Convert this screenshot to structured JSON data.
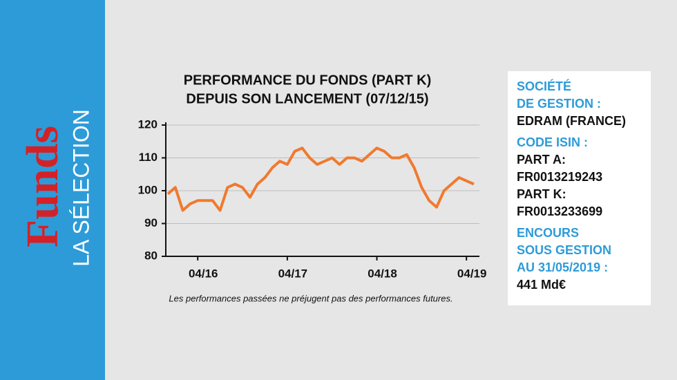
{
  "sidebar": {
    "brand": "Funds",
    "section": "LA SÉLECTION"
  },
  "chart_data": {
    "type": "line",
    "title": [
      "PERFORMANCE DU FONDS (PART K)",
      "DEPUIS SON LANCEMENT (07/12/15)"
    ],
    "x": [
      "12/15",
      "01/16",
      "02/16",
      "03/16",
      "04/16",
      "05/16",
      "06/16",
      "07/16",
      "08/16",
      "09/16",
      "10/16",
      "11/16",
      "12/16",
      "01/17",
      "02/17",
      "03/17",
      "04/17",
      "05/17",
      "06/17",
      "07/17",
      "08/17",
      "09/17",
      "10/17",
      "11/17",
      "12/17",
      "01/18",
      "02/18",
      "03/18",
      "04/18",
      "05/18",
      "06/18",
      "07/18",
      "08/18",
      "09/18",
      "10/18",
      "11/18",
      "12/18",
      "01/19",
      "02/19",
      "03/19",
      "04/19",
      "05/19"
    ],
    "series": [
      {
        "color": "#f07a2e",
        "values": [
          99,
          101,
          94,
          96,
          97,
          97,
          97,
          94,
          101,
          102,
          101,
          98,
          102,
          104,
          107,
          109,
          108,
          112,
          113,
          110,
          108,
          109,
          110,
          108,
          110,
          110,
          109,
          111,
          113,
          112,
          110,
          110,
          111,
          107,
          101,
          97,
          95,
          100,
          102,
          104,
          103,
          102
        ]
      }
    ],
    "xlim": [
      "12/15",
      "05/19"
    ],
    "xticks": [
      "04/16",
      "04/17",
      "04/18",
      "04/19"
    ],
    "ylim": [
      80,
      120
    ],
    "yticks": [
      80,
      90,
      100,
      110,
      120
    ],
    "grid": true,
    "note": "Les performances passées ne préjugent pas des performances futures."
  },
  "info": [
    {
      "label": [
        "SOCIÉTÉ",
        "DE GESTION :"
      ],
      "lines": [
        "EDRAM (FRANCE)"
      ]
    },
    {
      "label": [
        "CODE ISIN :"
      ],
      "lines": [
        "PART A:",
        "FR0013219243",
        "PART K:",
        "FR0013233699"
      ]
    },
    {
      "label": [
        "ENCOURS",
        "SOUS GESTION",
        "AU 31/05/2019 :"
      ],
      "lines": [
        "441 Md€"
      ]
    }
  ]
}
